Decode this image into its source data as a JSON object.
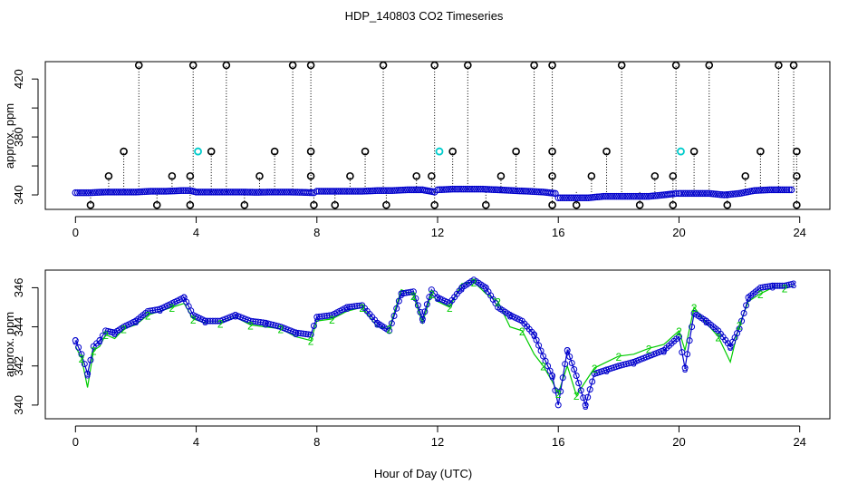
{
  "title": "HDP_140803  CO2 Timeseries",
  "xlabel": "Hour of Day (UTC)",
  "colors": {
    "points_primary": "#0000cc",
    "points_secondary": "#00cc00",
    "highlight": "#00cccc",
    "outlier": "#000000"
  },
  "chart_data": [
    {
      "type": "scatter",
      "ylabel": "approx. ppm",
      "xlim": [
        -1,
        25
      ],
      "ylim": [
        330,
        432
      ],
      "x_ticks": [
        0,
        4,
        8,
        12,
        16,
        20,
        24
      ],
      "y_ticks": [
        340,
        360,
        380,
        400,
        420
      ],
      "y_tick_labels": [
        "340",
        "",
        "380",
        "",
        "420"
      ],
      "series": [
        {
          "values": [
            [
              0,
              341.5
            ],
            [
              0.5,
              341.5
            ],
            [
              1,
              342
            ],
            [
              1.5,
              342
            ],
            [
              2,
              342
            ],
            [
              2.5,
              342.5
            ],
            [
              3,
              342.5
            ],
            [
              3.5,
              343
            ],
            [
              3.8,
              343
            ],
            [
              4,
              342
            ],
            [
              4.5,
              342
            ],
            [
              5,
              342
            ],
            [
              5.5,
              342
            ],
            [
              6,
              341.8
            ],
            [
              6.5,
              342
            ],
            [
              7,
              342
            ],
            [
              7.5,
              341.8
            ],
            [
              7.9,
              341.5
            ],
            [
              8,
              342.5
            ],
            [
              8.5,
              342.5
            ],
            [
              9,
              342.5
            ],
            [
              9.5,
              342.5
            ],
            [
              10,
              343
            ],
            [
              10.5,
              343
            ],
            [
              11,
              343.5
            ],
            [
              11.5,
              343.5
            ],
            [
              11.9,
              342
            ],
            [
              12,
              343.5
            ],
            [
              12.5,
              344
            ],
            [
              13,
              344
            ],
            [
              13.5,
              344
            ],
            [
              14,
              343.5
            ],
            [
              14.5,
              343
            ],
            [
              15,
              342.5
            ],
            [
              15.5,
              342
            ],
            [
              15.9,
              341
            ],
            [
              16,
              338
            ],
            [
              16.5,
              338
            ],
            [
              17,
              338
            ],
            [
              17.5,
              339
            ],
            [
              18,
              339
            ],
            [
              18.5,
              339
            ],
            [
              19,
              339
            ],
            [
              19.5,
              340
            ],
            [
              19.9,
              341
            ],
            [
              20,
              341
            ],
            [
              20.5,
              341
            ],
            [
              21,
              341
            ],
            [
              21.5,
              340
            ],
            [
              22,
              341
            ],
            [
              22.5,
              343
            ],
            [
              23,
              343.5
            ],
            [
              23.5,
              343.5
            ],
            [
              23.8,
              343.5
            ]
          ]
        },
        {
          "values": [
            [
              2.1,
              430
            ],
            [
              3.9,
              430
            ],
            [
              5,
              430
            ],
            [
              7.2,
              430
            ],
            [
              7.8,
              430
            ],
            [
              10.2,
              430
            ],
            [
              11.9,
              430
            ],
            [
              13,
              430
            ],
            [
              15.2,
              430
            ],
            [
              15.8,
              430
            ],
            [
              18.1,
              430
            ],
            [
              19.9,
              430
            ],
            [
              21,
              430
            ],
            [
              23.3,
              430
            ],
            [
              23.8,
              430
            ],
            [
              1.6,
              370
            ],
            [
              4.5,
              370
            ],
            [
              6.6,
              370
            ],
            [
              7.8,
              370
            ],
            [
              9.6,
              370
            ],
            [
              12.5,
              370
            ],
            [
              14.6,
              370
            ],
            [
              15.8,
              370
            ],
            [
              17.6,
              370
            ],
            [
              20.5,
              370
            ],
            [
              22.7,
              370
            ],
            [
              23.9,
              370
            ],
            [
              1.1,
              353
            ],
            [
              3.2,
              353
            ],
            [
              3.8,
              353
            ],
            [
              6.1,
              353
            ],
            [
              7.8,
              353
            ],
            [
              9.1,
              353
            ],
            [
              11.3,
              353
            ],
            [
              11.8,
              353
            ],
            [
              14.1,
              353
            ],
            [
              15.8,
              353
            ],
            [
              17.1,
              353
            ],
            [
              19.2,
              353
            ],
            [
              19.8,
              353
            ],
            [
              22.2,
              353
            ],
            [
              23.9,
              353
            ],
            [
              0.5,
              333
            ],
            [
              2.7,
              333
            ],
            [
              3.8,
              333
            ],
            [
              5.6,
              333
            ],
            [
              7.9,
              333
            ],
            [
              8.6,
              333
            ],
            [
              10.3,
              333
            ],
            [
              11.9,
              333
            ],
            [
              13.6,
              333
            ],
            [
              15.8,
              333
            ],
            [
              16.6,
              333
            ],
            [
              18.7,
              333
            ],
            [
              19.8,
              333
            ],
            [
              21.6,
              333
            ],
            [
              23.9,
              333
            ]
          ]
        },
        {
          "values": [
            [
              4,
              370
            ],
            [
              12,
              370
            ],
            [
              20,
              370
            ]
          ]
        }
      ]
    },
    {
      "type": "line",
      "ylabel": "approx. ppm",
      "xlim": [
        -1,
        25
      ],
      "ylim": [
        339.3,
        346.9
      ],
      "x_ticks": [
        0,
        4,
        8,
        12,
        16,
        20,
        24
      ],
      "y_ticks": [
        340,
        342,
        344,
        346
      ],
      "point_labels": [
        "3",
        "2"
      ],
      "series": [
        {
          "values": [
            [
              0,
              343.3
            ],
            [
              0.2,
              342.6
            ],
            [
              0.4,
              341.6
            ],
            [
              0.6,
              343.0
            ],
            [
              0.8,
              343.3
            ],
            [
              1.0,
              343.8
            ],
            [
              1.3,
              343.7
            ],
            [
              1.6,
              344.0
            ],
            [
              2.0,
              344.3
            ],
            [
              2.4,
              344.8
            ],
            [
              2.8,
              344.9
            ],
            [
              3.2,
              345.2
            ],
            [
              3.6,
              345.5
            ],
            [
              3.9,
              344.6
            ],
            [
              4.3,
              344.3
            ],
            [
              4.8,
              344.3
            ],
            [
              5.3,
              344.6
            ],
            [
              5.8,
              344.3
            ],
            [
              6.3,
              344.2
            ],
            [
              6.8,
              344.0
            ],
            [
              7.3,
              343.7
            ],
            [
              7.8,
              343.6
            ],
            [
              8.0,
              344.5
            ],
            [
              8.5,
              344.6
            ],
            [
              9.0,
              345.0
            ],
            [
              9.5,
              345.1
            ],
            [
              10.0,
              344.2
            ],
            [
              10.4,
              343.8
            ],
            [
              10.8,
              345.7
            ],
            [
              11.2,
              345.8
            ],
            [
              11.5,
              344.4
            ],
            [
              11.8,
              345.9
            ],
            [
              12.0,
              345.5
            ],
            [
              12.4,
              345.2
            ],
            [
              12.8,
              346.0
            ],
            [
              13.2,
              346.4
            ],
            [
              13.6,
              346.0
            ],
            [
              14.0,
              345.0
            ],
            [
              14.4,
              344.6
            ],
            [
              14.8,
              344.3
            ],
            [
              15.2,
              343.6
            ],
            [
              15.5,
              342.5
            ],
            [
              15.8,
              341.5
            ],
            [
              16.0,
              340.0
            ],
            [
              16.3,
              342.8
            ],
            [
              16.6,
              341.5
            ],
            [
              16.9,
              340.0
            ],
            [
              17.2,
              341.6
            ],
            [
              17.6,
              341.8
            ],
            [
              18.0,
              342.0
            ],
            [
              18.5,
              342.2
            ],
            [
              19.0,
              342.5
            ],
            [
              19.5,
              342.8
            ],
            [
              20.0,
              343.5
            ],
            [
              20.2,
              341.9
            ],
            [
              20.5,
              344.7
            ],
            [
              20.9,
              344.3
            ],
            [
              21.3,
              343.8
            ],
            [
              21.7,
              343.0
            ],
            [
              22.0,
              343.9
            ],
            [
              22.3,
              345.5
            ],
            [
              22.7,
              346.0
            ],
            [
              23.1,
              346.1
            ],
            [
              23.5,
              346.1
            ],
            [
              23.8,
              346.2
            ]
          ]
        },
        {
          "values": [
            [
              0,
              343.0
            ],
            [
              0.2,
              342.4
            ],
            [
              0.4,
              340.9
            ],
            [
              0.6,
              342.8
            ],
            [
              0.8,
              343.0
            ],
            [
              1.0,
              343.6
            ],
            [
              1.3,
              343.4
            ],
            [
              1.6,
              343.9
            ],
            [
              2.0,
              344.1
            ],
            [
              2.4,
              344.6
            ],
            [
              2.8,
              344.8
            ],
            [
              3.2,
              345.0
            ],
            [
              3.6,
              345.2
            ],
            [
              3.9,
              344.4
            ],
            [
              4.3,
              344.2
            ],
            [
              4.8,
              344.2
            ],
            [
              5.3,
              344.5
            ],
            [
              5.8,
              344.1
            ],
            [
              6.3,
              344.0
            ],
            [
              6.8,
              343.9
            ],
            [
              7.3,
              343.5
            ],
            [
              7.8,
              343.3
            ],
            [
              8.0,
              344.3
            ],
            [
              8.5,
              344.4
            ],
            [
              9.0,
              344.8
            ],
            [
              9.5,
              345.0
            ],
            [
              10.0,
              344.0
            ],
            [
              10.4,
              343.9
            ],
            [
              10.8,
              345.9
            ],
            [
              11.2,
              345.6
            ],
            [
              11.5,
              344.2
            ],
            [
              11.8,
              345.7
            ],
            [
              12.0,
              345.3
            ],
            [
              12.4,
              345.0
            ],
            [
              12.8,
              346.2
            ],
            [
              13.2,
              346.3
            ],
            [
              13.6,
              345.7
            ],
            [
              14.0,
              345.3
            ],
            [
              14.4,
              344.0
            ],
            [
              14.8,
              343.8
            ],
            [
              15.2,
              342.6
            ],
            [
              15.5,
              342.0
            ],
            [
              15.8,
              341.2
            ],
            [
              16.0,
              340.6
            ],
            [
              16.3,
              342.0
            ],
            [
              16.6,
              340.5
            ],
            [
              16.9,
              341.2
            ],
            [
              17.2,
              341.9
            ],
            [
              17.6,
              342.2
            ],
            [
              18.0,
              342.5
            ],
            [
              18.5,
              342.6
            ],
            [
              19.0,
              342.9
            ],
            [
              19.5,
              343.1
            ],
            [
              20.0,
              343.8
            ],
            [
              20.2,
              342.8
            ],
            [
              20.5,
              345.0
            ],
            [
              20.9,
              344.2
            ],
            [
              21.3,
              343.5
            ],
            [
              21.7,
              342.2
            ],
            [
              22.0,
              344.1
            ],
            [
              22.3,
              345.3
            ],
            [
              22.7,
              345.7
            ],
            [
              23.1,
              346.0
            ],
            [
              23.5,
              346.0
            ],
            [
              23.8,
              346.1
            ]
          ]
        }
      ]
    }
  ]
}
